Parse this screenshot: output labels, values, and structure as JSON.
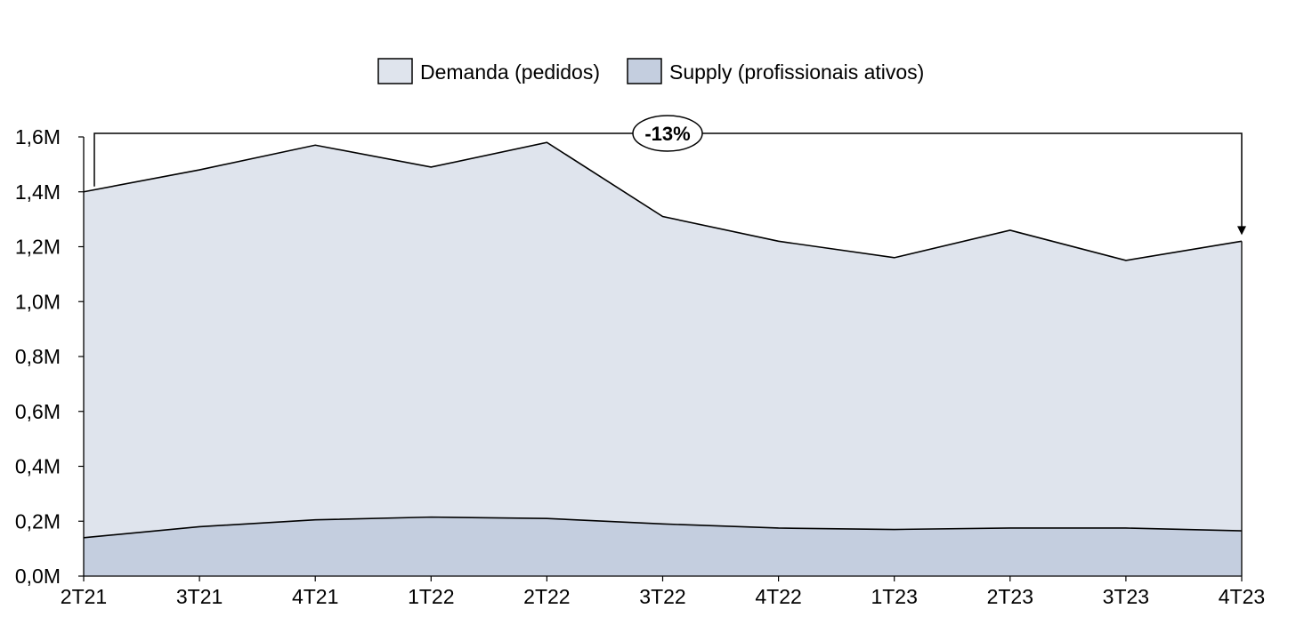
{
  "chart_data": {
    "type": "area",
    "title": "",
    "xlabel": "",
    "ylabel": "",
    "categories": [
      "2T21",
      "3T21",
      "4T21",
      "1T22",
      "2T22",
      "3T22",
      "4T22",
      "1T23",
      "2T23",
      "3T23",
      "4T23"
    ],
    "y_ticks": [
      "0,0M",
      "0,2M",
      "0,4M",
      "0,6M",
      "0,8M",
      "1,0M",
      "1,2M",
      "1,4M",
      "1,6M"
    ],
    "ylim": [
      0,
      1.6
    ],
    "y_unit": "M",
    "grid": false,
    "legend_position": "top-center",
    "stacked": false,
    "series": [
      {
        "name": "Demanda (pedidos)",
        "values": [
          1.4,
          1.48,
          1.57,
          1.49,
          1.58,
          1.31,
          1.22,
          1.16,
          1.26,
          1.15,
          1.22
        ],
        "color": "#dfe4ed"
      },
      {
        "name": "Supply (profissionais ativos)",
        "values": [
          0.14,
          0.18,
          0.205,
          0.215,
          0.21,
          0.19,
          0.175,
          0.17,
          0.175,
          0.175,
          0.165
        ],
        "color": "#c4cedf"
      }
    ],
    "annotation": {
      "label": "-13%",
      "from": "2T21",
      "to": "4T23"
    }
  }
}
